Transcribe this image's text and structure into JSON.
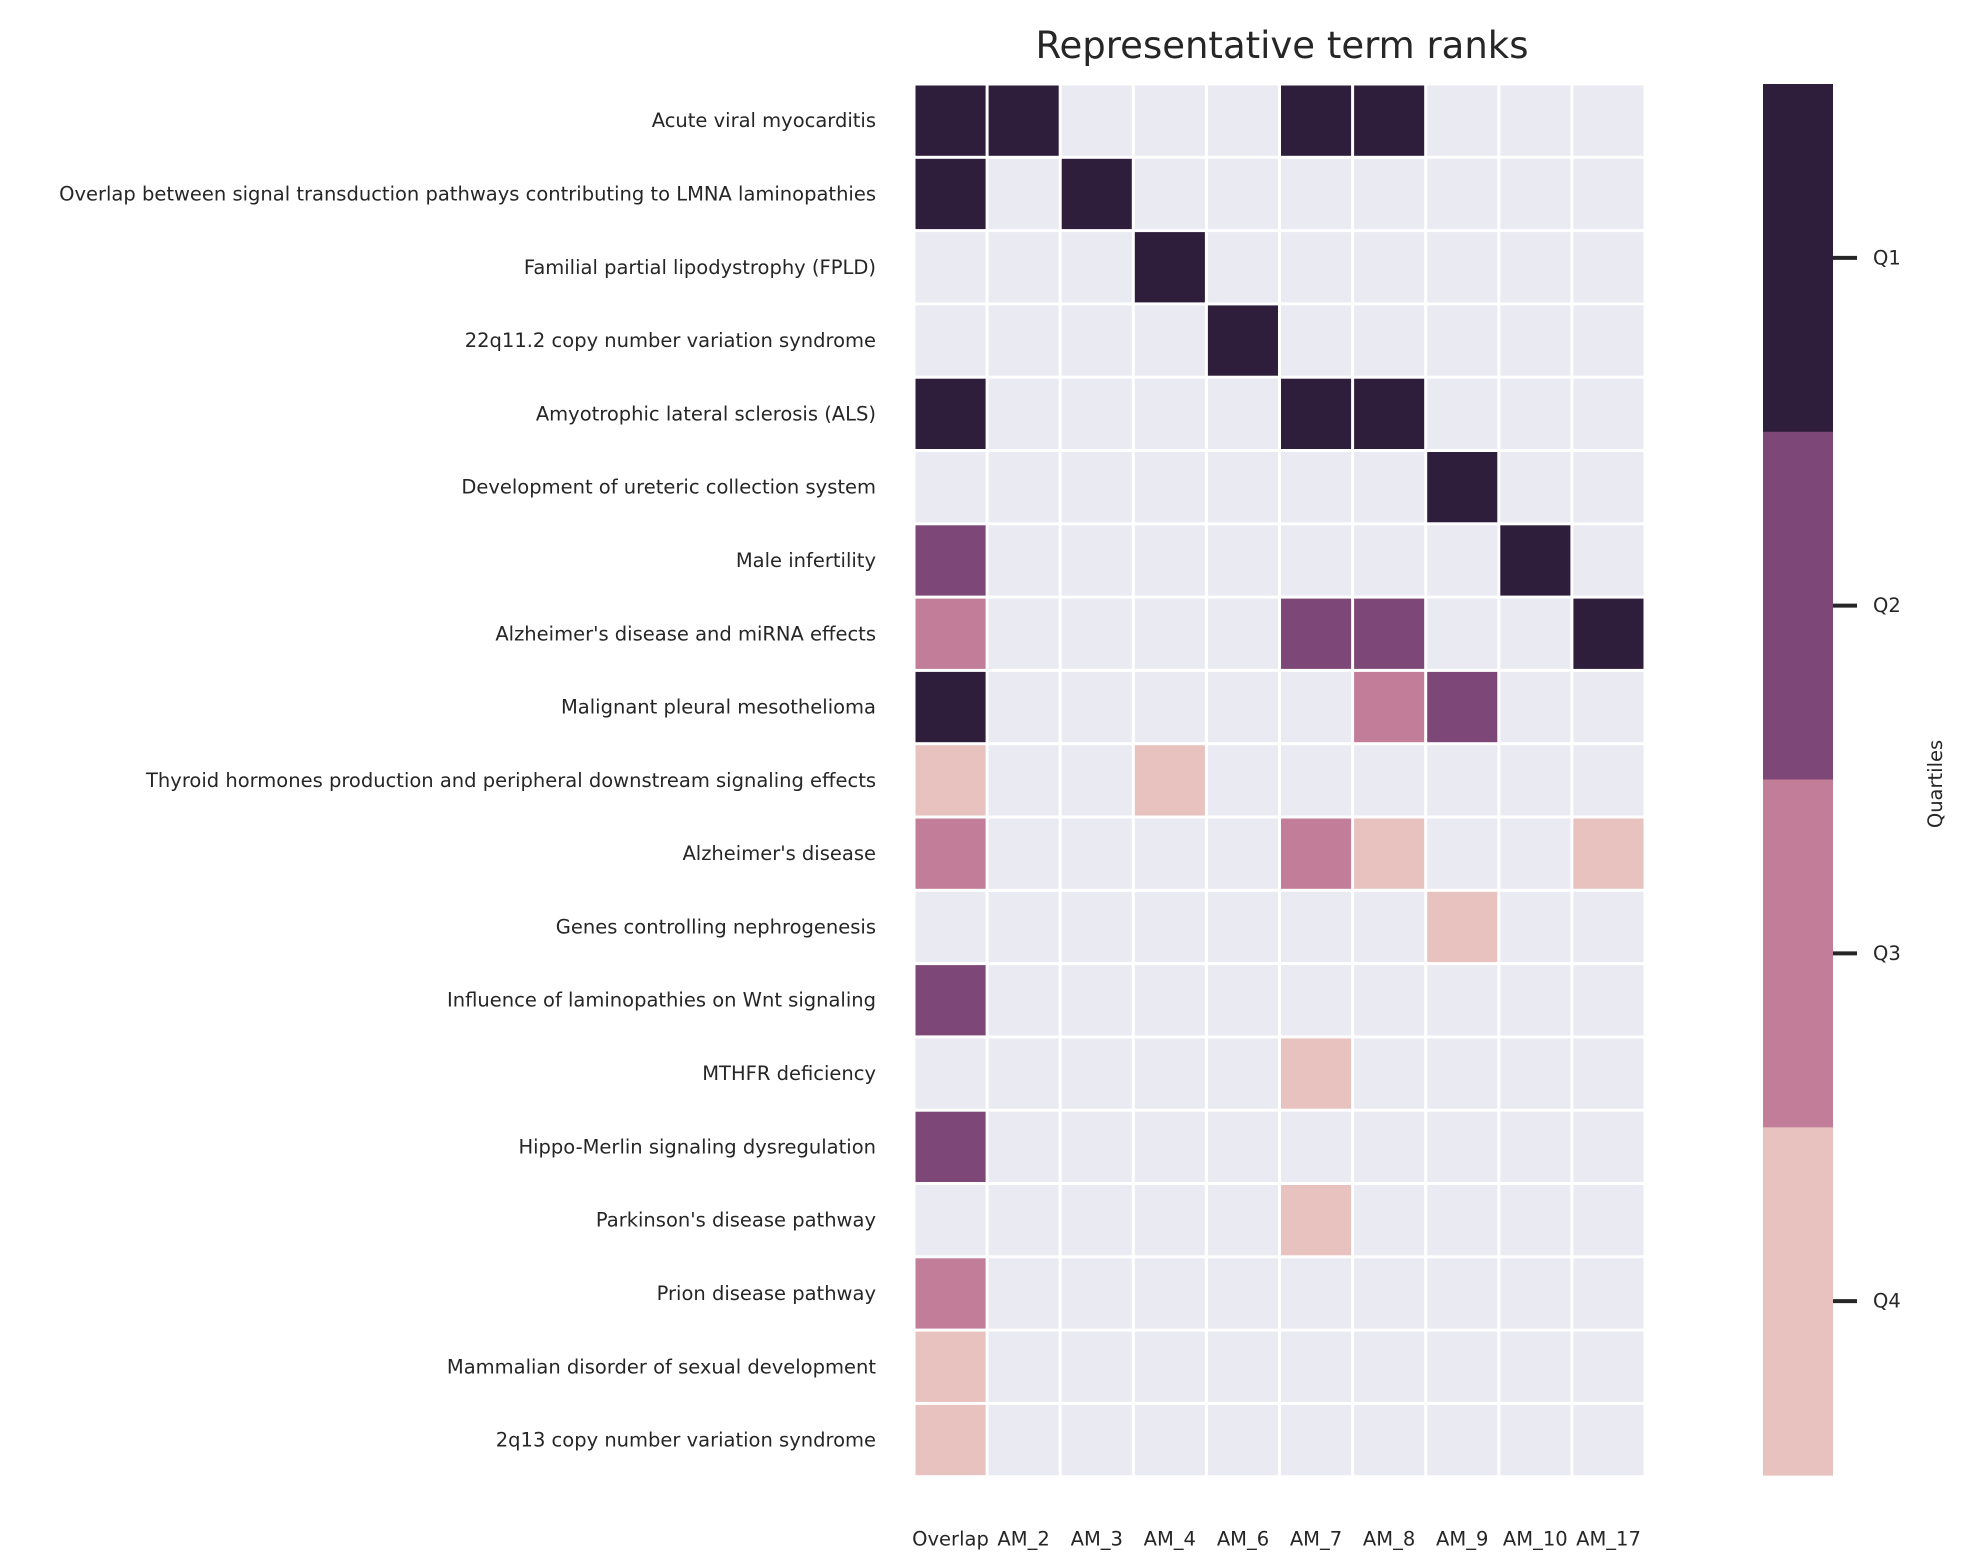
{
  "chart_data": {
    "type": "heatmap",
    "title": "Representative term ranks",
    "columns": [
      "Overlap",
      "AM_2",
      "AM_3",
      "AM_4",
      "AM_6",
      "AM_7",
      "AM_8",
      "AM_9",
      "AM_10",
      "AM_17"
    ],
    "rows": [
      "Acute viral myocarditis",
      "Overlap between signal transduction pathways contributing to LMNA laminopathies",
      "Familial partial lipodystrophy (FPLD)",
      "22q11.2 copy number variation syndrome",
      "Amyotrophic lateral sclerosis (ALS)",
      "Development of ureteric collection system",
      "Male infertility",
      "Alzheimer's disease and miRNA effects",
      "Malignant pleural mesothelioma",
      "Thyroid hormones production and peripheral downstream signaling effects",
      "Alzheimer's disease",
      "Genes controlling nephrogenesis",
      "Influence of laminopathies on Wnt signaling",
      "MTHFR deficiency",
      "Hippo-Merlin signaling dysregulation",
      "Parkinson's disease pathway",
      "Prion disease pathway",
      "Mammalian disorder of sexual development",
      "2q13 copy number variation syndrome"
    ],
    "quartile_values": [
      [
        1,
        1,
        null,
        null,
        null,
        1,
        1,
        null,
        null,
        null
      ],
      [
        1,
        null,
        1,
        null,
        null,
        null,
        null,
        null,
        null,
        null
      ],
      [
        null,
        null,
        null,
        1,
        null,
        null,
        null,
        null,
        null,
        null
      ],
      [
        null,
        null,
        null,
        null,
        1,
        null,
        null,
        null,
        null,
        null
      ],
      [
        1,
        null,
        null,
        null,
        null,
        1,
        1,
        null,
        null,
        null
      ],
      [
        null,
        null,
        null,
        null,
        null,
        null,
        null,
        1,
        null,
        null
      ],
      [
        2,
        null,
        null,
        null,
        null,
        null,
        null,
        null,
        1,
        null
      ],
      [
        3,
        null,
        null,
        null,
        null,
        2,
        2,
        null,
        null,
        1
      ],
      [
        1,
        null,
        null,
        null,
        null,
        null,
        3,
        2,
        null,
        null
      ],
      [
        4,
        null,
        null,
        4,
        null,
        null,
        null,
        null,
        null,
        null
      ],
      [
        3,
        null,
        null,
        null,
        null,
        3,
        4,
        null,
        null,
        4
      ],
      [
        null,
        null,
        null,
        null,
        null,
        null,
        null,
        4,
        null,
        null
      ],
      [
        2,
        null,
        null,
        null,
        null,
        null,
        null,
        null,
        null,
        null
      ],
      [
        null,
        null,
        null,
        null,
        null,
        4,
        null,
        null,
        null,
        null
      ],
      [
        2,
        null,
        null,
        null,
        null,
        null,
        null,
        null,
        null,
        null
      ],
      [
        null,
        null,
        null,
        null,
        null,
        4,
        null,
        null,
        null,
        null
      ],
      [
        3,
        null,
        null,
        null,
        null,
        null,
        null,
        null,
        null,
        null
      ],
      [
        4,
        null,
        null,
        null,
        null,
        null,
        null,
        null,
        null,
        null
      ],
      [
        4,
        null,
        null,
        null,
        null,
        null,
        null,
        null,
        null,
        null
      ]
    ],
    "colorbar": {
      "label": "Quartiles",
      "ticks": [
        "Q1",
        "Q2",
        "Q3",
        "Q4"
      ],
      "colors": {
        "Q1": "#2e1e3b",
        "Q2": "#7d4777",
        "Q3": "#c27d99",
        "Q4": "#e7c2be"
      },
      "empty_color": "#eaeaf2"
    },
    "grid": true
  }
}
